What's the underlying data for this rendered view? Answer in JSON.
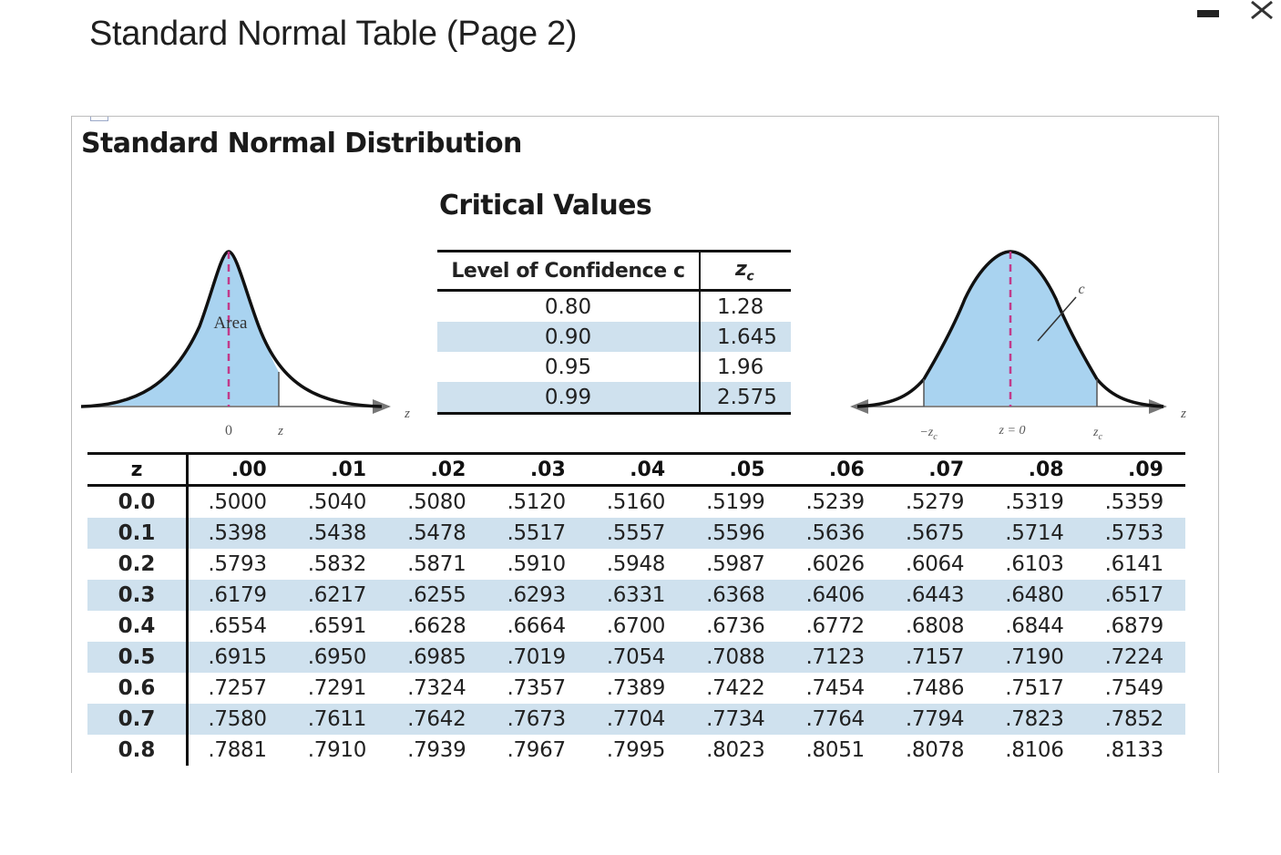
{
  "window": {
    "title": "Standard Normal Table (Page 2)",
    "minimize_icon": "minimize-icon",
    "close_icon": "close-icon"
  },
  "figure": {
    "heading": "Standard Normal Distribution",
    "left_curve": {
      "area_label": "Area",
      "x0_label": "0",
      "xz_label": "z",
      "axis_label": "z",
      "fill_color": "#a9d3f0"
    },
    "right_curve": {
      "c_label": "c",
      "neg_zc_label": "−z",
      "neg_zc_sub": "c",
      "z0_label": "z = 0",
      "zc_label": "z",
      "zc_sub": "c",
      "axis_label": "z",
      "fill_color": "#a9d3f0"
    },
    "critical_values": {
      "title": "Critical Values",
      "col1": "Level of Confidence c",
      "col2": "z",
      "col2_sub": "c",
      "rows": [
        {
          "level": "0.80",
          "z": "1.28"
        },
        {
          "level": "0.90",
          "z": "1.645"
        },
        {
          "level": "0.95",
          "z": "1.96"
        },
        {
          "level": "0.99",
          "z": "2.575"
        }
      ]
    },
    "z_table": {
      "headers": [
        "z",
        ".00",
        ".01",
        ".02",
        ".03",
        ".04",
        ".05",
        ".06",
        ".07",
        ".08",
        ".09"
      ],
      "rows": [
        {
          "z": "0.0",
          "vals": [
            ".5000",
            ".5040",
            ".5080",
            ".5120",
            ".5160",
            ".5199",
            ".5239",
            ".5279",
            ".5319",
            ".5359"
          ]
        },
        {
          "z": "0.1",
          "vals": [
            ".5398",
            ".5438",
            ".5478",
            ".5517",
            ".5557",
            ".5596",
            ".5636",
            ".5675",
            ".5714",
            ".5753"
          ]
        },
        {
          "z": "0.2",
          "vals": [
            ".5793",
            ".5832",
            ".5871",
            ".5910",
            ".5948",
            ".5987",
            ".6026",
            ".6064",
            ".6103",
            ".6141"
          ]
        },
        {
          "z": "0.3",
          "vals": [
            ".6179",
            ".6217",
            ".6255",
            ".6293",
            ".6331",
            ".6368",
            ".6406",
            ".6443",
            ".6480",
            ".6517"
          ]
        },
        {
          "z": "0.4",
          "vals": [
            ".6554",
            ".6591",
            ".6628",
            ".6664",
            ".6700",
            ".6736",
            ".6772",
            ".6808",
            ".6844",
            ".6879"
          ]
        },
        {
          "z": "0.5",
          "vals": [
            ".6915",
            ".6950",
            ".6985",
            ".7019",
            ".7054",
            ".7088",
            ".7123",
            ".7157",
            ".7190",
            ".7224"
          ]
        },
        {
          "z": "0.6",
          "vals": [
            ".7257",
            ".7291",
            ".7324",
            ".7357",
            ".7389",
            ".7422",
            ".7454",
            ".7486",
            ".7517",
            ".7549"
          ]
        },
        {
          "z": "0.7",
          "vals": [
            ".7580",
            ".7611",
            ".7642",
            ".7673",
            ".7704",
            ".7734",
            ".7764",
            ".7794",
            ".7823",
            ".7852"
          ]
        },
        {
          "z": "0.8",
          "vals": [
            ".7881",
            ".7910",
            ".7939",
            ".7967",
            ".7995",
            ".8023",
            ".8051",
            ".8078",
            ".8106",
            ".8133"
          ]
        }
      ]
    }
  }
}
